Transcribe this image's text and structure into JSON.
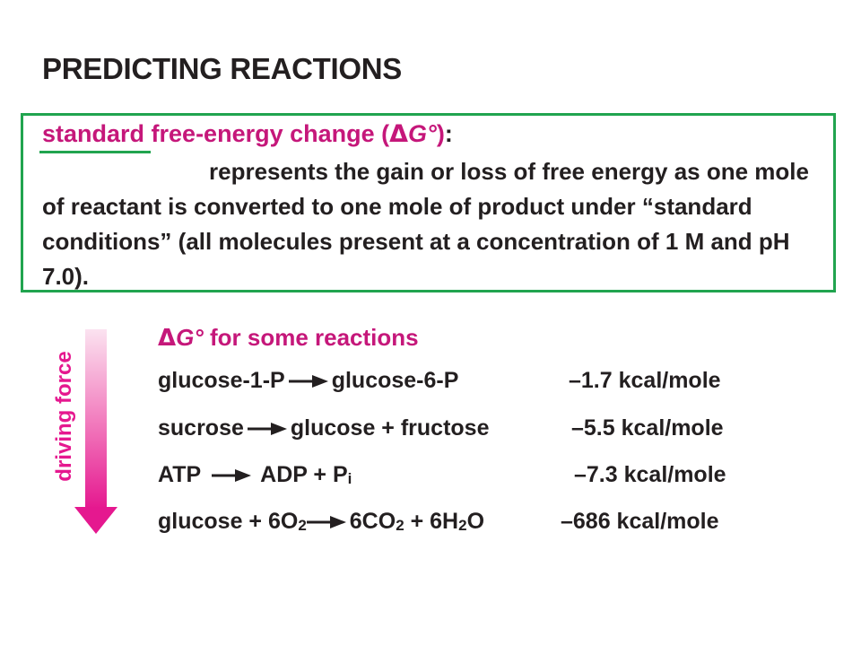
{
  "title": "PREDICTING REACTIONS",
  "definition": {
    "term_word": "standard",
    "term_rest": " free-energy change (",
    "symbol_delta": "Δ",
    "symbol_g": "G°",
    "term_close": ")",
    "colon": ":",
    "body": "represents the gain or loss of free energy as one mole of reactant is converted to one mole of product under “standard conditions” (all molecules present at a concentration of 1 M and pH 7.0)."
  },
  "section": {
    "delta": "Δ",
    "g": "G°",
    "title_rest": " for some reactions",
    "force_label": "driving force"
  },
  "reactions": [
    {
      "left": "glucose-1-P",
      "right": "glucose-6-P",
      "value": "–1.7 kcal/mole"
    },
    {
      "left": "sucrose",
      "right": "glucose + fructose",
      "value": "–5.5 kcal/mole"
    },
    {
      "left": "ATP",
      "right_main": "ADP + P",
      "right_sub": "i",
      "value": "–7.3 kcal/mole"
    },
    {
      "left_main": "glucose + 6O",
      "left_sub": "2",
      "r1": "6CO",
      "r1_sub": "2",
      "r2": " + 6H",
      "r2_sub": "2",
      "r3": "O",
      "value": "–686 kcal/mole"
    }
  ],
  "colors": {
    "accent": "#c5177a",
    "box": "#21a44f",
    "arrow": "#e5188f"
  }
}
